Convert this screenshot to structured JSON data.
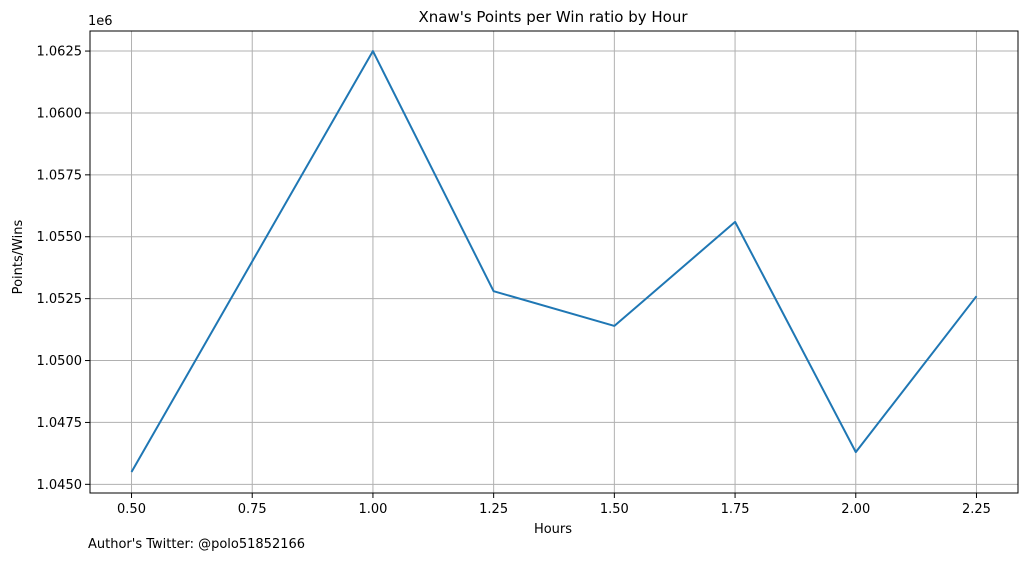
{
  "chart_data": {
    "type": "line",
    "title": "Xnaw's Points per Win ratio by Hour",
    "xlabel": "Hours",
    "ylabel": "Points/Wins",
    "y_offset_label": "1e6",
    "x": [
      0.5,
      0.75,
      1.0,
      1.25,
      1.5,
      1.75,
      2.0,
      2.25
    ],
    "series": [
      {
        "color": "#1f77b4",
        "values": [
          1045500,
          1054000,
          1062500,
          1052800,
          1051400,
          1055600,
          1046300,
          1052600
        ]
      }
    ],
    "xlim": [
      0.414,
      2.336
    ],
    "ylim": [
      1.04465,
      1.06331
    ],
    "xticks": [
      0.5,
      0.75,
      1.0,
      1.25,
      1.5,
      1.75,
      2.0,
      2.25
    ],
    "xtick_labels": [
      "0.50",
      "0.75",
      "1.00",
      "1.25",
      "1.50",
      "1.75",
      "2.00",
      "2.25"
    ],
    "yticks": [
      1.045,
      1.0475,
      1.05,
      1.0525,
      1.055,
      1.0575,
      1.06,
      1.0625
    ],
    "ytick_labels": [
      "1.0450",
      "1.0475",
      "1.0500",
      "1.0525",
      "1.0550",
      "1.0575",
      "1.0600",
      "1.0625"
    ],
    "grid": true,
    "grid_color": "#b0b0b0"
  },
  "footer": {
    "text": "Author's Twitter: @polo51852166"
  }
}
